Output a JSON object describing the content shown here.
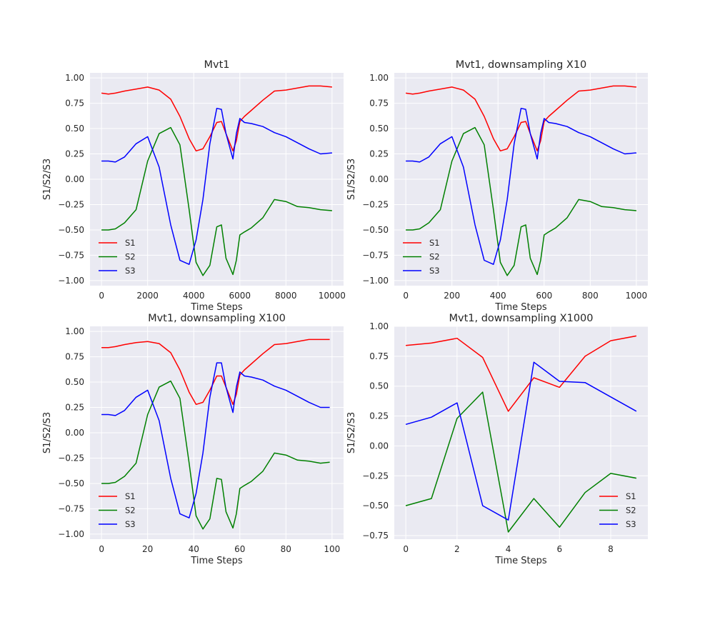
{
  "chart_data": [
    {
      "type": "line",
      "title": "Mvt1",
      "xlabel": "Time Steps",
      "ylabel": "S1/S2/S3",
      "xlim": [
        -500,
        10500
      ],
      "ylim": [
        -1.05,
        1.05
      ],
      "xticks": [
        0,
        2000,
        4000,
        6000,
        8000,
        10000
      ],
      "yticks": [
        -1.0,
        -0.75,
        -0.5,
        -0.25,
        0.0,
        0.25,
        0.5,
        0.75,
        1.0
      ],
      "xtick_labels": [
        "0",
        "2000",
        "4000",
        "6000",
        "8000",
        "10000"
      ],
      "ytick_labels": [
        "−1.00",
        "−0.75",
        "−0.50",
        "−0.25",
        "0.00",
        "0.25",
        "0.50",
        "0.75",
        "1.00"
      ],
      "legend": "lower-left",
      "grid": true,
      "x": [
        0,
        300,
        600,
        1000,
        1500,
        2000,
        2500,
        3000,
        3400,
        3800,
        4100,
        4400,
        4700,
        5000,
        5200,
        5400,
        5700,
        5850,
        6000,
        6200,
        6500,
        7000,
        7500,
        8000,
        8500,
        9000,
        9500,
        10000
      ],
      "series": [
        {
          "name": "S1",
          "color": "#ff0000",
          "values": [
            0.85,
            0.84,
            0.85,
            0.87,
            0.89,
            0.91,
            0.88,
            0.79,
            0.62,
            0.4,
            0.28,
            0.3,
            0.42,
            0.56,
            0.57,
            0.45,
            0.28,
            0.38,
            0.57,
            0.62,
            0.68,
            0.78,
            0.87,
            0.88,
            0.9,
            0.92,
            0.92,
            0.91
          ]
        },
        {
          "name": "S2",
          "color": "#008000",
          "values": [
            -0.5,
            -0.5,
            -0.49,
            -0.43,
            -0.3,
            0.18,
            0.45,
            0.51,
            0.34,
            -0.3,
            -0.82,
            -0.95,
            -0.85,
            -0.47,
            -0.45,
            -0.78,
            -0.94,
            -0.8,
            -0.55,
            -0.52,
            -0.48,
            -0.38,
            -0.2,
            -0.22,
            -0.27,
            -0.28,
            -0.3,
            -0.31
          ]
        },
        {
          "name": "S3",
          "color": "#0000ff",
          "values": [
            0.18,
            0.18,
            0.17,
            0.22,
            0.35,
            0.42,
            0.12,
            -0.45,
            -0.8,
            -0.84,
            -0.6,
            -0.2,
            0.35,
            0.7,
            0.69,
            0.45,
            0.2,
            0.45,
            0.6,
            0.56,
            0.55,
            0.52,
            0.46,
            0.42,
            0.36,
            0.3,
            0.25,
            0.26
          ]
        }
      ]
    },
    {
      "type": "line",
      "title": "Mvt1, downsampling X10",
      "xlabel": "Time Steps",
      "ylabel": "S1/S2/S3",
      "xlim": [
        -50,
        1050
      ],
      "ylim": [
        -1.05,
        1.05
      ],
      "xticks": [
        0,
        200,
        400,
        600,
        800,
        1000
      ],
      "yticks": [
        -1.0,
        -0.75,
        -0.5,
        -0.25,
        0.0,
        0.25,
        0.5,
        0.75,
        1.0
      ],
      "xtick_labels": [
        "0",
        "200",
        "400",
        "600",
        "800",
        "1000"
      ],
      "ytick_labels": [
        "−1.00",
        "−0.75",
        "−0.50",
        "−0.25",
        "0.00",
        "0.25",
        "0.50",
        "0.75",
        "1.00"
      ],
      "legend": "lower-left",
      "grid": true,
      "x": [
        0,
        30,
        60,
        100,
        150,
        200,
        250,
        300,
        340,
        380,
        410,
        440,
        470,
        500,
        520,
        540,
        570,
        585,
        600,
        620,
        650,
        700,
        750,
        800,
        850,
        900,
        950,
        1000
      ],
      "series": [
        {
          "name": "S1",
          "color": "#ff0000",
          "values": [
            0.85,
            0.84,
            0.85,
            0.87,
            0.89,
            0.91,
            0.88,
            0.79,
            0.62,
            0.4,
            0.28,
            0.3,
            0.42,
            0.56,
            0.57,
            0.45,
            0.28,
            0.38,
            0.57,
            0.62,
            0.68,
            0.78,
            0.87,
            0.88,
            0.9,
            0.92,
            0.92,
            0.91
          ]
        },
        {
          "name": "S2",
          "color": "#008000",
          "values": [
            -0.5,
            -0.5,
            -0.49,
            -0.43,
            -0.3,
            0.18,
            0.45,
            0.51,
            0.34,
            -0.3,
            -0.82,
            -0.95,
            -0.85,
            -0.47,
            -0.45,
            -0.78,
            -0.94,
            -0.8,
            -0.55,
            -0.52,
            -0.48,
            -0.38,
            -0.2,
            -0.22,
            -0.27,
            -0.28,
            -0.3,
            -0.31
          ]
        },
        {
          "name": "S3",
          "color": "#0000ff",
          "values": [
            0.18,
            0.18,
            0.17,
            0.22,
            0.35,
            0.42,
            0.12,
            -0.45,
            -0.8,
            -0.84,
            -0.6,
            -0.2,
            0.35,
            0.7,
            0.69,
            0.45,
            0.2,
            0.45,
            0.6,
            0.56,
            0.55,
            0.52,
            0.46,
            0.42,
            0.36,
            0.3,
            0.25,
            0.26
          ]
        }
      ]
    },
    {
      "type": "line",
      "title": "Mvt1, downsampling X100",
      "xlabel": "Time Steps",
      "ylabel": "S1/S2/S3",
      "xlim": [
        -5,
        105
      ],
      "ylim": [
        -1.05,
        1.05
      ],
      "xticks": [
        0,
        20,
        40,
        60,
        80,
        100
      ],
      "yticks": [
        -1.0,
        -0.75,
        -0.5,
        -0.25,
        0.0,
        0.25,
        0.5,
        0.75,
        1.0
      ],
      "xtick_labels": [
        "0",
        "20",
        "40",
        "60",
        "80",
        "100"
      ],
      "ytick_labels": [
        "−1.00",
        "−0.75",
        "−0.50",
        "−0.25",
        "0.00",
        "0.25",
        "0.50",
        "0.75",
        "1.00"
      ],
      "legend": "lower-left",
      "grid": true,
      "x": [
        0,
        3,
        6,
        10,
        15,
        20,
        25,
        30,
        34,
        38,
        41,
        44,
        47,
        50,
        52,
        54,
        57,
        58.5,
        60,
        62,
        65,
        70,
        75,
        80,
        85,
        90,
        95,
        99
      ],
      "series": [
        {
          "name": "S1",
          "color": "#ff0000",
          "values": [
            0.84,
            0.84,
            0.85,
            0.87,
            0.89,
            0.9,
            0.88,
            0.79,
            0.62,
            0.4,
            0.28,
            0.3,
            0.42,
            0.56,
            0.56,
            0.45,
            0.28,
            0.38,
            0.57,
            0.62,
            0.68,
            0.78,
            0.87,
            0.88,
            0.9,
            0.92,
            0.92,
            0.92
          ]
        },
        {
          "name": "S2",
          "color": "#008000",
          "values": [
            -0.5,
            -0.5,
            -0.49,
            -0.43,
            -0.3,
            0.18,
            0.45,
            0.51,
            0.34,
            -0.3,
            -0.82,
            -0.95,
            -0.85,
            -0.45,
            -0.46,
            -0.78,
            -0.94,
            -0.8,
            -0.55,
            -0.52,
            -0.48,
            -0.38,
            -0.2,
            -0.22,
            -0.27,
            -0.28,
            -0.3,
            -0.29
          ]
        },
        {
          "name": "S3",
          "color": "#0000ff",
          "values": [
            0.18,
            0.18,
            0.17,
            0.22,
            0.35,
            0.42,
            0.12,
            -0.45,
            -0.8,
            -0.84,
            -0.6,
            -0.2,
            0.35,
            0.69,
            0.69,
            0.45,
            0.2,
            0.45,
            0.6,
            0.56,
            0.55,
            0.52,
            0.46,
            0.42,
            0.36,
            0.3,
            0.25,
            0.25
          ]
        }
      ]
    },
    {
      "type": "line",
      "title": "Mvt1, downsampling X1000",
      "xlabel": "Time Steps",
      "ylabel": "S1/S2/S3",
      "xlim": [
        -0.45,
        9.45
      ],
      "ylim": [
        -0.78,
        1.0
      ],
      "xticks": [
        0,
        2,
        4,
        6,
        8
      ],
      "yticks": [
        -0.75,
        -0.5,
        -0.25,
        0.0,
        0.25,
        0.5,
        0.75,
        1.0
      ],
      "xtick_labels": [
        "0",
        "2",
        "4",
        "6",
        "8"
      ],
      "ytick_labels": [
        "−0.75",
        "−0.50",
        "−0.25",
        "0.00",
        "0.25",
        "0.50",
        "0.75",
        "1.00"
      ],
      "legend": "lower-right",
      "grid": true,
      "x": [
        0,
        1,
        2,
        3,
        4,
        5,
        6,
        7,
        8,
        9
      ],
      "series": [
        {
          "name": "S1",
          "color": "#ff0000",
          "values": [
            0.84,
            0.86,
            0.9,
            0.74,
            0.29,
            0.57,
            0.49,
            0.75,
            0.88,
            0.92
          ]
        },
        {
          "name": "S2",
          "color": "#008000",
          "values": [
            -0.5,
            -0.44,
            0.23,
            0.45,
            -0.72,
            -0.44,
            -0.68,
            -0.39,
            -0.23,
            -0.27
          ]
        },
        {
          "name": "S3",
          "color": "#0000ff",
          "values": [
            0.18,
            0.24,
            0.36,
            -0.5,
            -0.62,
            0.7,
            0.54,
            0.53,
            0.41,
            0.29
          ]
        }
      ]
    }
  ]
}
